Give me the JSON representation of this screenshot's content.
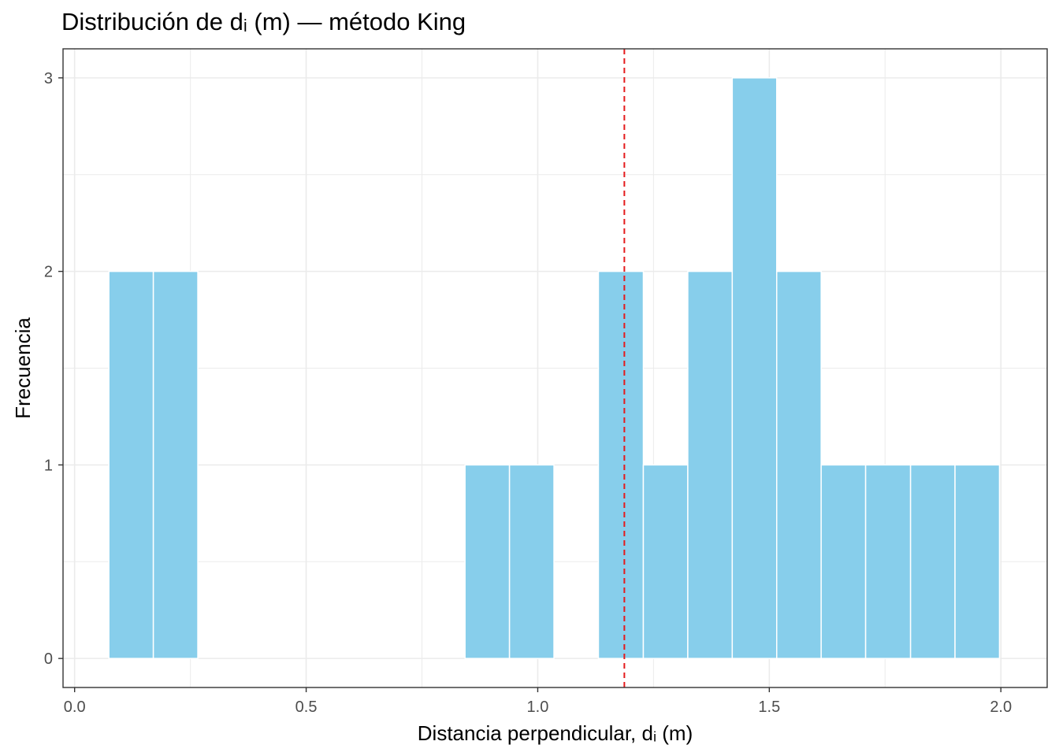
{
  "chart_data": {
    "type": "bar",
    "title": "Distribución de dᵢ (m) — método King",
    "xlabel": "Distancia perpendicular, dᵢ (m)",
    "ylabel": "Frecuencia",
    "xlim": [
      -0.025,
      2.1
    ],
    "ylim": [
      -0.15,
      3.15
    ],
    "x_ticks": [
      "0.0",
      "0.5",
      "1.0",
      "1.5",
      "2.0"
    ],
    "y_ticks": [
      "0",
      "1",
      "2",
      "3"
    ],
    "bin_width": 0.0962,
    "bins": [
      {
        "start": 0.074,
        "end": 0.17,
        "count": 2
      },
      {
        "start": 0.17,
        "end": 0.266,
        "count": 2
      },
      {
        "start": 0.843,
        "end": 0.939,
        "count": 1
      },
      {
        "start": 0.939,
        "end": 1.035,
        "count": 1
      },
      {
        "start": 1.131,
        "end": 1.228,
        "count": 2
      },
      {
        "start": 1.228,
        "end": 1.324,
        "count": 1
      },
      {
        "start": 1.324,
        "end": 1.42,
        "count": 2
      },
      {
        "start": 1.42,
        "end": 1.516,
        "count": 3
      },
      {
        "start": 1.516,
        "end": 1.612,
        "count": 2
      },
      {
        "start": 1.612,
        "end": 1.708,
        "count": 1
      },
      {
        "start": 1.708,
        "end": 1.805,
        "count": 1
      },
      {
        "start": 1.805,
        "end": 1.901,
        "count": 1
      },
      {
        "start": 1.901,
        "end": 1.997,
        "count": 1
      }
    ],
    "vline": {
      "x": 1.187,
      "style": "dashed"
    },
    "grid": true,
    "colors": {
      "bar": "#87CEEB",
      "bar_edge": "#ffffff",
      "vline": "#E41A1C",
      "grid": "#EBEBEB",
      "panel_border": "#333333",
      "tick_text": "#4D4D4D"
    }
  }
}
